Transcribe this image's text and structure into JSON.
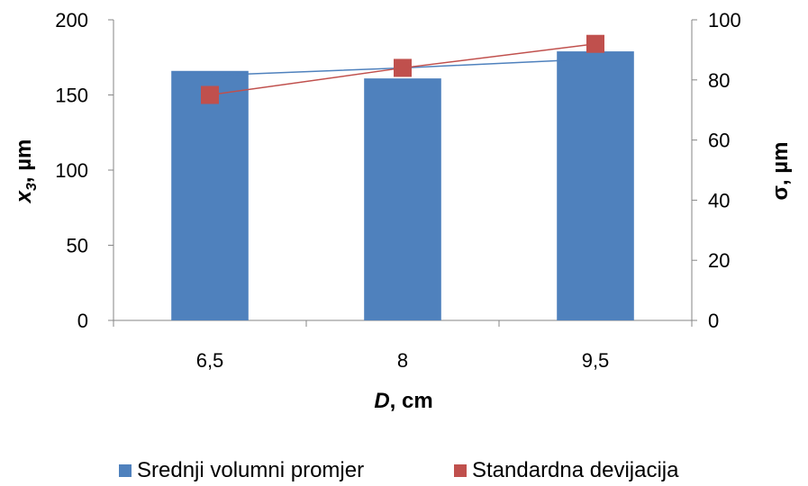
{
  "chart_data": {
    "type": "bar",
    "categories": [
      "6,5",
      "8",
      "9,5"
    ],
    "series": [
      {
        "name": "Srednji volumni promjer",
        "type": "bar",
        "axis": "left",
        "values": [
          166,
          161,
          179
        ],
        "color": "#4f81bd"
      },
      {
        "name": "Standardna devijacija",
        "type": "line",
        "axis": "right",
        "values": [
          75,
          84,
          92
        ],
        "color": "#c0504d",
        "marker": "square"
      }
    ],
    "overlay_line": {
      "values": [
        163,
        168,
        174
      ],
      "axis": "left",
      "color": "#4f81bd"
    },
    "xlabel": {
      "main": "D",
      "rest": ", cm"
    },
    "ylabel_left": {
      "main": "x",
      "sub": "3",
      "rest": ", µm"
    },
    "ylabel_right": "σ, µm",
    "ylim_left": [
      0,
      200
    ],
    "yticks_left": [
      "0",
      "50",
      "100",
      "150",
      "200"
    ],
    "ylim_right": [
      0,
      100
    ],
    "yticks_right": [
      "0",
      "20",
      "40",
      "60",
      "80",
      "100"
    ],
    "grid": false,
    "legend_position": "bottom"
  }
}
